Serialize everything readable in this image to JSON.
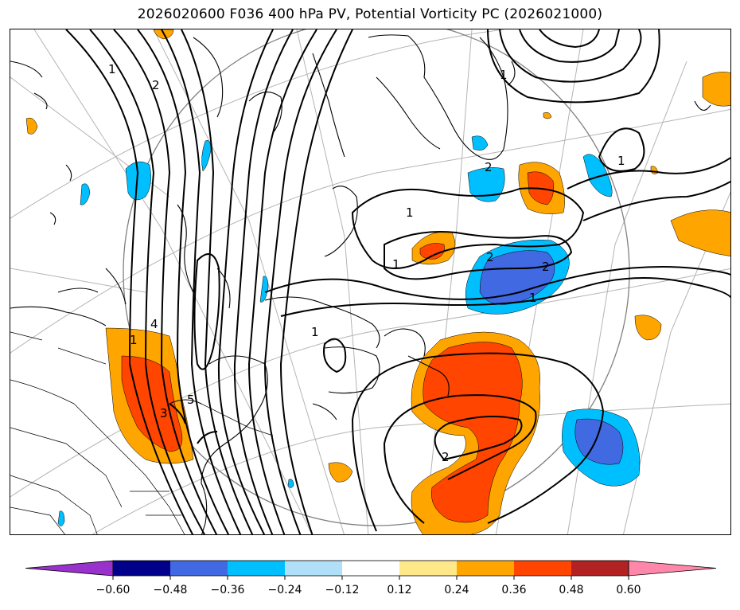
{
  "title": "2026020600 F036 400 hPa PV, Potential Vorticity PC (2026021000)",
  "contour_labels": [
    "1",
    "2",
    "1",
    "2",
    "2",
    "1",
    "1",
    "1",
    "2",
    "1",
    "4",
    "5",
    "3",
    "1",
    "2",
    "1"
  ],
  "colorbar": {
    "colors": [
      "#9932cc",
      "#00008b",
      "#4169e1",
      "#00bfff",
      "#b0e0f8",
      "#ffffff",
      "#ffe88a",
      "#ffa500",
      "#ff4500",
      "#b22222",
      "#ff88aa"
    ],
    "tick_labels": [
      "−0.60",
      "−0.48",
      "−0.36",
      "−0.24",
      "−0.12",
      "0.12",
      "0.24",
      "0.36",
      "0.48",
      "0.60"
    ]
  }
}
